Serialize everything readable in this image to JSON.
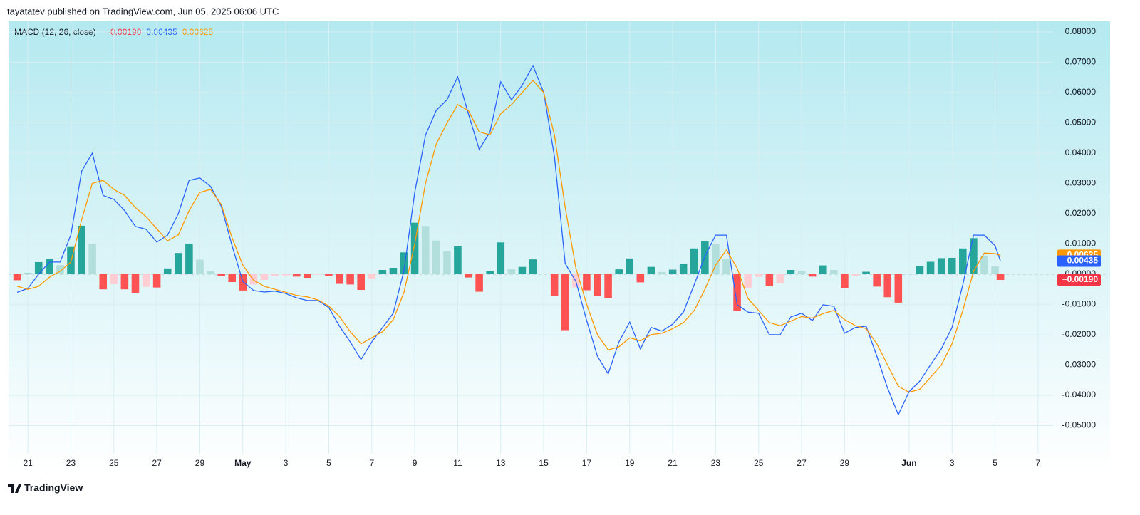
{
  "header": "tayatatev published on TradingView.com, Jun 05, 2025 06:06 UTC",
  "footer": "TradingView",
  "chart_data": {
    "type": "macd",
    "legend": {
      "label": "MACD (12, 26, close)",
      "values": [
        "−0.00190",
        "0.00435",
        "0.00625"
      ]
    },
    "x": [
      -0.5,
      0,
      0.5,
      1,
      1.5,
      2,
      2.5,
      3,
      3.5,
      4,
      4.5,
      5,
      5.5,
      6,
      6.5,
      7,
      7.5,
      8,
      8.5,
      9,
      9.5,
      10,
      10.5,
      11,
      11.5,
      12,
      12.5,
      13,
      13.5,
      14,
      14.5,
      15,
      15.5,
      16,
      16.5,
      17,
      17.5,
      18,
      18.5,
      19,
      19.5,
      20,
      20.5,
      21,
      21.5,
      22,
      22.5,
      23,
      23.5,
      24,
      24.5,
      25,
      25.5,
      26,
      26.5,
      27,
      27.5,
      28,
      28.5,
      29,
      29.5,
      30,
      30.5,
      31,
      31.5,
      32,
      32.5,
      33,
      33.5,
      34,
      34.5,
      35,
      35.5,
      36,
      36.5,
      37,
      37.5,
      38,
      38.5,
      39,
      39.5,
      40,
      40.5,
      41,
      41.5,
      42,
      42.5,
      43,
      43.5,
      44,
      44.5,
      45,
      45.25
    ],
    "series": [
      {
        "kind": "histogram",
        "color": "#f23645",
        "bar_colors": {
          "up_rising": "#26a69a",
          "up_falling": "#b2dfdb",
          "down_falling": "#ff5252",
          "down_rising": "#ffcdd2"
        },
        "values": [
          -0.002,
          0.0003,
          0.004,
          0.005,
          0.003,
          0.009,
          0.016,
          0.01,
          -0.005,
          -0.0033,
          -0.005,
          -0.0062,
          -0.0042,
          -0.0044,
          0.0019,
          0.007,
          0.01,
          0.0048,
          0.001,
          -0.0006,
          -0.0026,
          -0.0054,
          -0.0034,
          -0.0019,
          -0.0006,
          -0.0004,
          -0.0008,
          -0.0012,
          -0.0002,
          -0.0005,
          -0.0032,
          -0.0034,
          -0.0052,
          -0.0014,
          0.0014,
          0.0021,
          0.0072,
          0.017,
          0.0159,
          0.0111,
          0.0076,
          0.0092,
          -0.0011,
          -0.0058,
          0.001,
          0.0105,
          0.0016,
          0.0024,
          0.0049,
          0,
          -0.0072,
          -0.0185,
          -0.0044,
          -0.0053,
          -0.0071,
          -0.0079,
          0.0016,
          0.0052,
          -0.0027,
          0.0024,
          0.0007,
          0.0015,
          0.0035,
          0.0085,
          0.0109,
          0.0099,
          0.0049,
          -0.0121,
          -0.0045,
          -0.0009,
          -0.004,
          -0.003,
          0.0014,
          0.0011,
          -0.0008,
          0.0029,
          0.0014,
          -0.0045,
          -0.0006,
          0.0008,
          -0.0041,
          -0.0076,
          -0.0094,
          0.0002,
          0.0027,
          0.0041,
          0.0053,
          0.0054,
          0.0085,
          0.0119,
          0.0059,
          0.0026,
          -0.0019
        ]
      },
      {
        "kind": "line",
        "color": "#2962ff",
        "values": [
          -0.006,
          -0.0047,
          0,
          0.004,
          0.004,
          0.013,
          0.034,
          0.04,
          0.026,
          0.0247,
          0.021,
          0.0158,
          0.0148,
          0.0106,
          0.0129,
          0.02,
          0.031,
          0.0318,
          0.029,
          0.0224,
          0.0094,
          -0.0024,
          -0.0054,
          -0.0059,
          -0.0056,
          -0.0064,
          -0.0078,
          -0.0087,
          -0.0087,
          -0.011,
          -0.0172,
          -0.0224,
          -0.0282,
          -0.0224,
          -0.0176,
          -0.0129,
          0.0012,
          0.027,
          0.0459,
          0.0541,
          0.0576,
          0.0652,
          0.0529,
          0.0412,
          0.047,
          0.0635,
          0.0576,
          0.0624,
          0.0689,
          0.06,
          0.0388,
          0.0035,
          -0.0024,
          -0.0153,
          -0.0271,
          -0.0329,
          -0.0224,
          -0.0158,
          -0.0247,
          -0.0176,
          -0.0188,
          -0.0165,
          -0.0125,
          -0.0035,
          0.0059,
          0.0129,
          0.0129,
          -0.0101,
          -0.0125,
          -0.0129,
          -0.02,
          -0.02,
          -0.0141,
          -0.0129,
          -0.0153,
          -0.0101,
          -0.0106,
          -0.0195,
          -0.0176,
          -0.0172,
          -0.0271,
          -0.0376,
          -0.0464,
          -0.0388,
          -0.0353,
          -0.0299,
          -0.0247,
          -0.0176,
          -0.0035,
          0.0129,
          0.0129,
          0.0094,
          0.00435
        ]
      },
      {
        "kind": "line",
        "color": "#ff9800",
        "values": [
          -0.004,
          -0.005,
          -0.004,
          -0.001,
          0.001,
          0.004,
          0.018,
          0.03,
          0.031,
          0.028,
          0.026,
          0.022,
          0.019,
          0.015,
          0.011,
          0.013,
          0.021,
          0.027,
          0.028,
          0.023,
          0.012,
          0.003,
          -0.002,
          -0.004,
          -0.005,
          -0.006,
          -0.007,
          -0.0075,
          -0.0085,
          -0.0105,
          -0.014,
          -0.019,
          -0.023,
          -0.021,
          -0.019,
          -0.015,
          -0.006,
          0.01,
          0.03,
          0.043,
          0.05,
          0.056,
          0.054,
          0.047,
          0.046,
          0.053,
          0.056,
          0.06,
          0.064,
          0.06,
          0.046,
          0.022,
          0.002,
          -0.01,
          -0.02,
          -0.025,
          -0.024,
          -0.021,
          -0.022,
          -0.02,
          -0.0195,
          -0.018,
          -0.016,
          -0.012,
          -0.005,
          0.003,
          0.008,
          0.002,
          -0.008,
          -0.012,
          -0.016,
          -0.017,
          -0.0155,
          -0.014,
          -0.0145,
          -0.013,
          -0.012,
          -0.015,
          -0.017,
          -0.018,
          -0.023,
          -0.03,
          -0.037,
          -0.039,
          -0.038,
          -0.034,
          -0.03,
          -0.023,
          -0.012,
          0.001,
          0.007,
          0.0068,
          0.00625
        ]
      }
    ],
    "xlim": [
      -0.9,
      47.7
    ],
    "xticks": [
      {
        "value": 0,
        "label": "21"
      },
      {
        "value": 2,
        "label": "23"
      },
      {
        "value": 4,
        "label": "25"
      },
      {
        "value": 6,
        "label": "27"
      },
      {
        "value": 8,
        "label": "29"
      },
      {
        "value": 10,
        "label": "May"
      },
      {
        "value": 12,
        "label": "3"
      },
      {
        "value": 14,
        "label": "5"
      },
      {
        "value": 16,
        "label": "7"
      },
      {
        "value": 18,
        "label": "9"
      },
      {
        "value": 20,
        "label": "11"
      },
      {
        "value": 22,
        "label": "13"
      },
      {
        "value": 24,
        "label": "15"
      },
      {
        "value": 26,
        "label": "17"
      },
      {
        "value": 28,
        "label": "19"
      },
      {
        "value": 30,
        "label": "21"
      },
      {
        "value": 32,
        "label": "23"
      },
      {
        "value": 34,
        "label": "25"
      },
      {
        "value": 36,
        "label": "27"
      },
      {
        "value": 38,
        "label": "29"
      },
      {
        "value": 41,
        "label": "Jun"
      },
      {
        "value": 43,
        "label": "3"
      },
      {
        "value": 45,
        "label": "5"
      },
      {
        "value": 47,
        "label": "7"
      }
    ],
    "ylim": [
      -0.0593,
      0.0835
    ],
    "yticks": [
      {
        "value": 0.08,
        "label": "0.08000"
      },
      {
        "value": 0.07,
        "label": "0.07000"
      },
      {
        "value": 0.06,
        "label": "0.06000"
      },
      {
        "value": 0.05,
        "label": "0.05000"
      },
      {
        "value": 0.04,
        "label": "0.04000"
      },
      {
        "value": 0.03,
        "label": "0.03000"
      },
      {
        "value": 0.02,
        "label": "0.02000"
      },
      {
        "value": 0.01,
        "label": "0.01000"
      },
      {
        "value": 0,
        "label": "0.00000"
      },
      {
        "value": -0.01,
        "label": "-0.01000"
      },
      {
        "value": -0.02,
        "label": "-0.02000"
      },
      {
        "value": -0.03,
        "label": "-0.03000"
      },
      {
        "value": -0.04,
        "label": "-0.04000"
      },
      {
        "value": -0.05,
        "label": "-0.05000"
      }
    ],
    "grid": true
  }
}
